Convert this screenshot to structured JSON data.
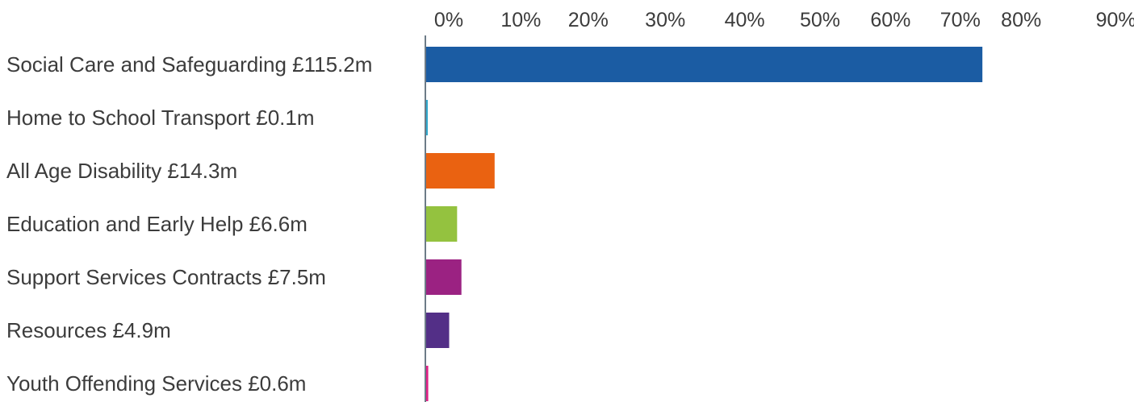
{
  "chart_data": {
    "type": "bar",
    "orientation": "horizontal",
    "x_ticks": [
      "0%",
      "10%",
      "20%",
      "30%",
      "40%",
      "50%",
      "60%",
      "70%",
      "80%",
      "90%"
    ],
    "x_axis_position": "top",
    "xlim": [
      0,
      90
    ],
    "grid": false,
    "legend": "none",
    "categories": [
      "Social Care and Safeguarding £115.2m",
      "Home to School Transport £0.1m",
      "All Age Disability £14.3m",
      "Education and Early Help £6.6m",
      "Support Services Contracts £7.5m",
      "Resources £4.9m",
      "Youth Offending Services £0.6m"
    ],
    "values": [
      77.2,
      0.1,
      9.6,
      4.4,
      5.0,
      3.3,
      0.4
    ],
    "colors": [
      "#1b5ca3",
      "#2fa8cc",
      "#ea6211",
      "#94c23f",
      "#9b2282",
      "#532f87",
      "#e01f85"
    ],
    "axis_color": "#6d7b87"
  }
}
